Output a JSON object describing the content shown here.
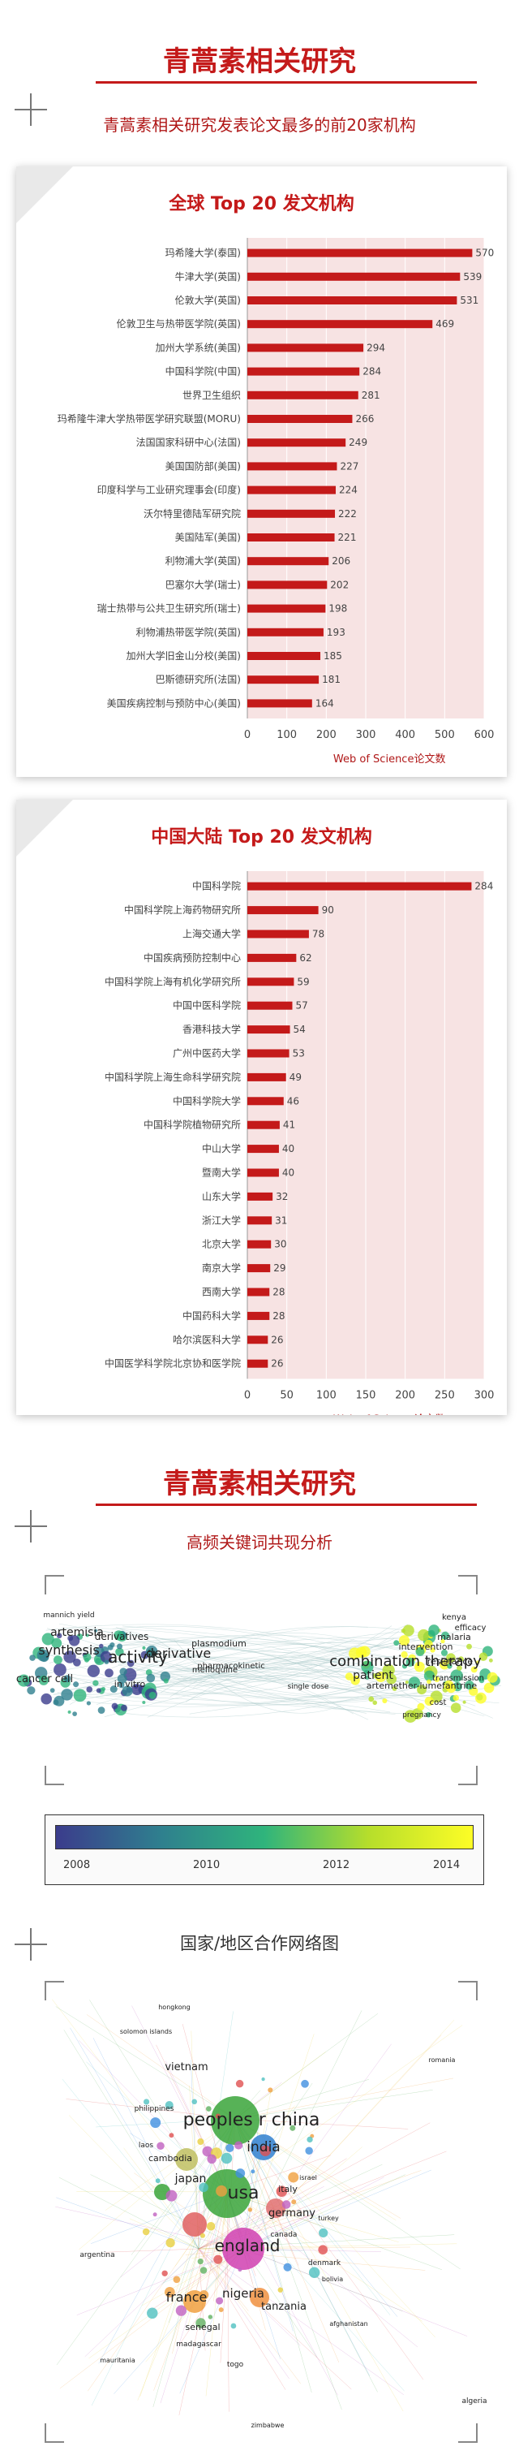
{
  "section1": {
    "title": "青蒿素相关研究",
    "subtitle": "青蒿素相关研究发表论文最多的前20家机构"
  },
  "section2": {
    "title": "青蒿素相关研究",
    "subtitle": "高频关键词共现分析"
  },
  "section3": {
    "subtitle": "国家/地区合作网络图"
  },
  "colors": {
    "accent": "#c41a1a",
    "bar": "#c41a1a",
    "plot_bg": "#f7e3e3"
  },
  "chart_data": [
    {
      "type": "bar",
      "orientation": "horizontal",
      "title": "全球 Top 20 发文机构",
      "xlabel": "Web of Science论文数",
      "xlim": [
        0,
        600
      ],
      "xticks": [
        0,
        100,
        200,
        300,
        400,
        500,
        600
      ],
      "categories": [
        "玛希隆大学(泰国)",
        "牛津大学(英国)",
        "伦敦大学(英国)",
        "伦敦卫生与热带医学院(英国)",
        "加州大学系统(美国)",
        "中国科学院(中国)",
        "世界卫生组织",
        "玛希隆牛津大学热带医学研究联盟(MORU)",
        "法国国家科研中心(法国)",
        "美国国防部(美国)",
        "印度科学与工业研究理事会(印度)",
        "沃尔特里德陆军研究院",
        "美国陆军(美国)",
        "利物浦大学(英国)",
        "巴塞尔大学(瑞士)",
        "瑞士热带与公共卫生研究所(瑞士)",
        "利物浦热带医学院(英国)",
        "加州大学旧金山分校(美国)",
        "巴斯德研究所(法国)",
        "美国疾病控制与预防中心(美国)"
      ],
      "values": [
        570,
        539,
        531,
        469,
        294,
        284,
        281,
        266,
        249,
        227,
        224,
        222,
        221,
        206,
        202,
        198,
        193,
        185,
        181,
        164
      ]
    },
    {
      "type": "bar",
      "orientation": "horizontal",
      "title": "中国大陆 Top 20 发文机构",
      "xlabel": "Web of Science论文数",
      "xlim": [
        0,
        300
      ],
      "xticks": [
        0,
        50,
        100,
        150,
        200,
        250,
        300
      ],
      "categories": [
        "中国科学院",
        "中国科学院上海药物研究所",
        "上海交通大学",
        "中国疾病预防控制中心",
        "中国科学院上海有机化学研究所",
        "中国中医科学院",
        "香港科技大学",
        "广州中医药大学",
        "中国科学院上海生命科学研究院",
        "中国科学院大学",
        "中国科学院植物研究所",
        "中山大学",
        "暨南大学",
        "山东大学",
        "浙江大学",
        "北京大学",
        "南京大学",
        "西南大学",
        "中国药科大学",
        "哈尔滨医科大学",
        "中国医学科学院北京协和医学院"
      ],
      "values": [
        284,
        90,
        78,
        62,
        59,
        57,
        54,
        53,
        49,
        46,
        41,
        40,
        40,
        32,
        31,
        30,
        29,
        28,
        28,
        26,
        26
      ]
    }
  ],
  "keyword_map": {
    "labels": [
      "mannich yield",
      "artemisia",
      "derivatives",
      "synthesis",
      "derivative",
      "activity",
      "cancer cell",
      "in vitro",
      "mefloquine",
      "plasmodium",
      "pharmacokinetic",
      "combination therapy",
      "patient",
      "intervention",
      "malaria",
      "artemether-lumefantrine",
      "resistance",
      "efficacy",
      "transmission",
      "single dose",
      "kenya",
      "cost",
      "pregnancy"
    ],
    "legend_ticks": [
      "2008",
      "2010",
      "2012",
      "2014"
    ],
    "legend_colors": [
      "#3b3c8c",
      "#2f7f8e",
      "#2fb47c",
      "#b6de2b",
      "#fdfd26"
    ]
  },
  "country_map": {
    "labels": [
      "hongkong",
      "solomon islands",
      "vietnam",
      "philippines",
      "laos",
      "cambodia",
      "peoples r china",
      "india",
      "usa",
      "japan",
      "italy",
      "germany",
      "england",
      "canada",
      "france",
      "nigeria",
      "tanzania",
      "senegal",
      "madagascar",
      "argentina",
      "mauritania",
      "algeria",
      "denmark",
      "romania",
      "turkey",
      "israel",
      "afghanistan",
      "togo",
      "bolivia",
      "zimbabwe"
    ]
  }
}
